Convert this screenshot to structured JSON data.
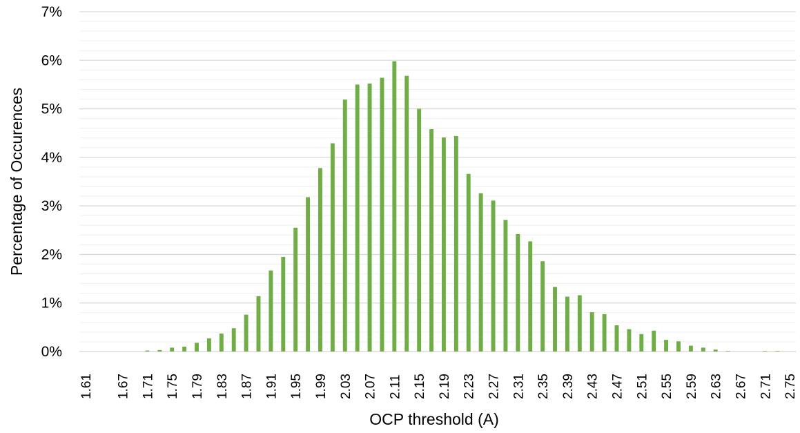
{
  "chart_data": {
    "type": "bar",
    "title": "",
    "xlabel": "OCP threshold (A)",
    "ylabel": "Percentage of Occurences",
    "ylim": [
      0,
      7
    ],
    "y_ticks": [
      "0%",
      "1%",
      "2%",
      "3%",
      "4%",
      "5%",
      "6%",
      "7%"
    ],
    "y_tick_values": [
      0,
      1,
      2,
      3,
      4,
      5,
      6,
      7
    ],
    "grid": true,
    "legend": "none",
    "bar_color": "#70AD47",
    "categories": [
      "1.61",
      "1.63",
      "1.65",
      "1.67",
      "1.69",
      "1.71",
      "1.73",
      "1.75",
      "1.77",
      "1.79",
      "1.81",
      "1.83",
      "1.85",
      "1.87",
      "1.89",
      "1.91",
      "1.93",
      "1.95",
      "1.97",
      "1.99",
      "2.01",
      "2.03",
      "2.05",
      "2.07",
      "2.09",
      "2.11",
      "2.13",
      "2.15",
      "2.17",
      "2.19",
      "2.21",
      "2.23",
      "2.25",
      "2.27",
      "2.29",
      "2.31",
      "2.33",
      "2.35",
      "2.37",
      "2.39",
      "2.41",
      "2.43",
      "2.45",
      "2.47",
      "2.49",
      "2.51",
      "2.53",
      "2.55",
      "2.57",
      "2.59",
      "2.61",
      "2.63",
      "2.65",
      "2.67",
      "2.69",
      "2.71",
      "2.73",
      "2.75"
    ],
    "x_tick_labels": [
      "1.61",
      "1.67",
      "1.71",
      "1.75",
      "1.79",
      "1.83",
      "1.87",
      "1.91",
      "1.95",
      "1.99",
      "2.03",
      "2.07",
      "2.11",
      "2.15",
      "2.19",
      "2.23",
      "2.27",
      "2.31",
      "2.35",
      "2.39",
      "2.43",
      "2.47",
      "2.51",
      "2.55",
      "2.59",
      "2.63",
      "2.67",
      "2.71",
      "2.75"
    ],
    "values": [
      0,
      0,
      0,
      0,
      0,
      0.02,
      0.03,
      0.08,
      0.1,
      0.18,
      0.27,
      0.37,
      0.48,
      0.76,
      1.14,
      1.67,
      1.95,
      2.55,
      3.18,
      3.78,
      4.29,
      5.19,
      5.5,
      5.52,
      5.64,
      5.98,
      5.68,
      5.0,
      4.58,
      4.41,
      4.44,
      3.66,
      3.26,
      3.11,
      2.71,
      2.42,
      2.27,
      1.86,
      1.33,
      1.13,
      1.16,
      0.81,
      0.77,
      0.54,
      0.46,
      0.36,
      0.43,
      0.24,
      0.21,
      0.12,
      0.08,
      0.04,
      0.01,
      0,
      0,
      0.01,
      0.01,
      0
    ]
  }
}
